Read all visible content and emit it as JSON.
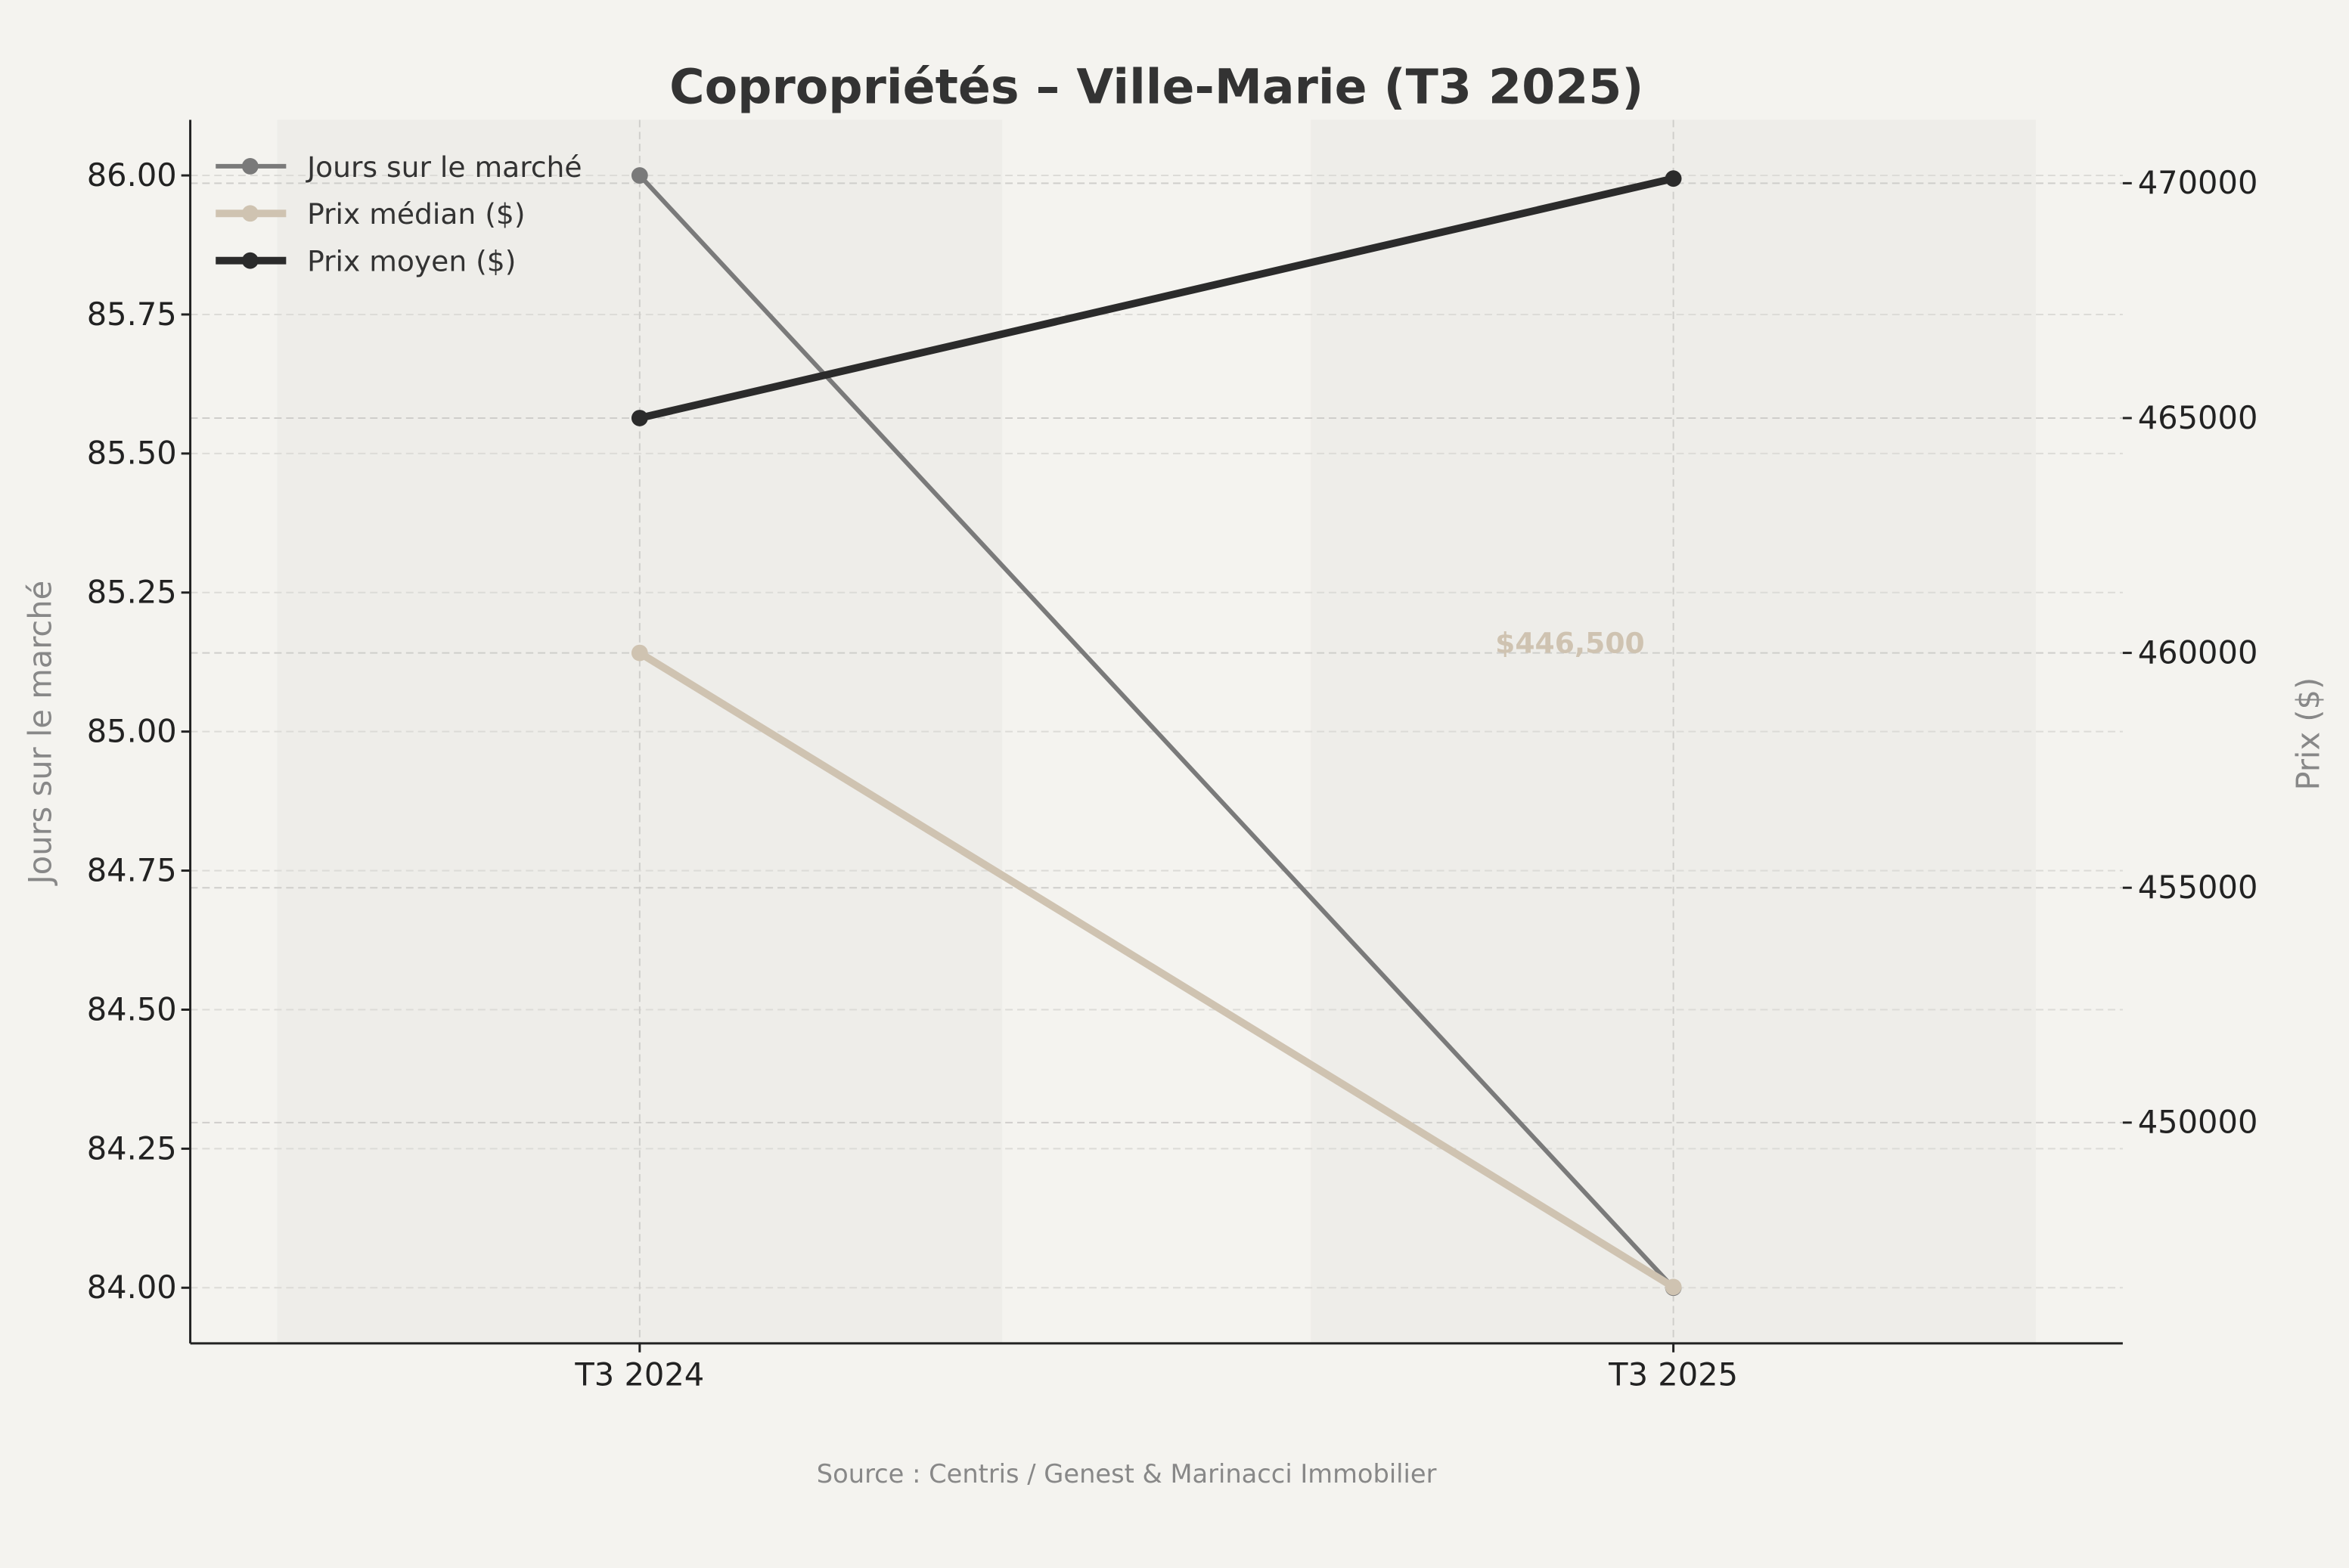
{
  "chart_data": {
    "type": "line",
    "title": "Copropriétés – Ville-Marie (T3 2025)",
    "categories": [
      "T3 2024",
      "T3 2025"
    ],
    "ylabel_left": "Jours sur le marché",
    "ylabel_right": "Prix ($)",
    "ylim_left": [
      83.9,
      86.1
    ],
    "ylim_right": [
      445300,
      471350
    ],
    "yticks_left": [
      "84.00",
      "84.25",
      "84.50",
      "84.75",
      "85.00",
      "85.25",
      "85.50",
      "85.75",
      "86.00"
    ],
    "yticks_right": [
      "450000",
      "455000",
      "460000",
      "465000",
      "470000"
    ],
    "grid": true,
    "legend_position": "top-left",
    "series": [
      {
        "name": "Jours sur le marché",
        "axis": "left",
        "values": [
          86,
          84
        ],
        "color": "#7a7a7a"
      },
      {
        "name": "Prix médian ($)",
        "axis": "right",
        "values": [
          460000,
          446500
        ],
        "color": "#cfc3b1"
      },
      {
        "name": "Prix moyen ($)",
        "axis": "right",
        "values": [
          465000,
          470100
        ],
        "color": "#2b2b2b"
      }
    ],
    "annotation": "$446,500",
    "source": "Source : Centris / Genest & Marinacci Immobilier"
  }
}
